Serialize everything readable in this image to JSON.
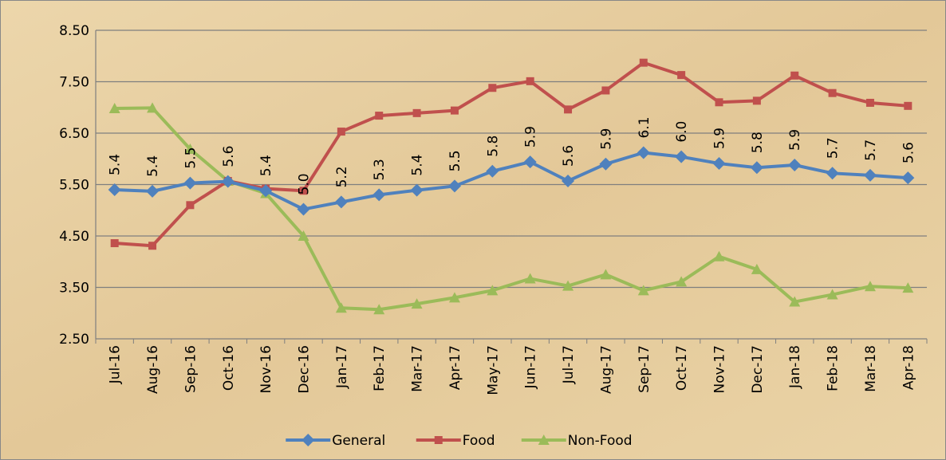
{
  "chart_data": {
    "type": "line",
    "categories": [
      "Jul-16",
      "Aug-16",
      "Sep-16",
      "Oct-16",
      "Nov-16",
      "Dec-16",
      "Jan-17",
      "Feb-17",
      "Mar-17",
      "Apr-17",
      "May-17",
      "Jun-17",
      "Jul-17",
      "Aug-17",
      "Sep-17",
      "Oct-17",
      "Nov-17",
      "Dec-17",
      "Jan-18",
      "Feb-18",
      "Mar-18",
      "Apr-18"
    ],
    "series": [
      {
        "name": "General",
        "color": "#4f81bd",
        "marker": "diamond",
        "values": [
          5.4,
          5.37,
          5.53,
          5.56,
          5.38,
          5.02,
          5.16,
          5.3,
          5.39,
          5.47,
          5.76,
          5.94,
          5.57,
          5.9,
          6.12,
          6.04,
          5.91,
          5.83,
          5.88,
          5.72,
          5.68,
          5.63
        ],
        "value_labels": [
          "5.4",
          "5.4",
          "5.5",
          "5.6",
          "5.4",
          "5.0",
          "5.2",
          "5.3",
          "5.4",
          "5.5",
          "5.8",
          "5.9",
          "5.6",
          "5.9",
          "6.1",
          "6.0",
          "5.9",
          "5.8",
          "5.9",
          "5.7",
          "5.7",
          "5.6"
        ]
      },
      {
        "name": "Food",
        "color": "#c0504d",
        "marker": "square",
        "values": [
          4.36,
          4.31,
          5.1,
          5.57,
          5.42,
          5.38,
          6.53,
          6.84,
          6.89,
          6.94,
          7.38,
          7.51,
          6.96,
          7.33,
          7.87,
          7.63,
          7.1,
          7.13,
          7.62,
          7.28,
          7.09,
          7.03
        ]
      },
      {
        "name": "Non-Food",
        "color": "#9bbb59",
        "marker": "triangle",
        "values": [
          6.98,
          6.99,
          6.19,
          5.57,
          5.33,
          4.5,
          3.1,
          3.07,
          3.18,
          3.3,
          3.44,
          3.67,
          3.53,
          3.75,
          3.44,
          3.61,
          4.1,
          3.85,
          3.22,
          3.36,
          3.52,
          3.49
        ]
      }
    ],
    "ylim": [
      2.5,
      8.5
    ],
    "yticks": [
      {
        "value": 2.5,
        "label": "2.50"
      },
      {
        "value": 3.5,
        "label": "3.50"
      },
      {
        "value": 4.5,
        "label": "4.50"
      },
      {
        "value": 5.5,
        "label": "5.50"
      },
      {
        "value": 6.5,
        "label": "6.50"
      },
      {
        "value": 7.5,
        "label": "7.50"
      },
      {
        "value": 8.5,
        "label": "8.50"
      }
    ],
    "grid": true,
    "legend": "bottom"
  }
}
